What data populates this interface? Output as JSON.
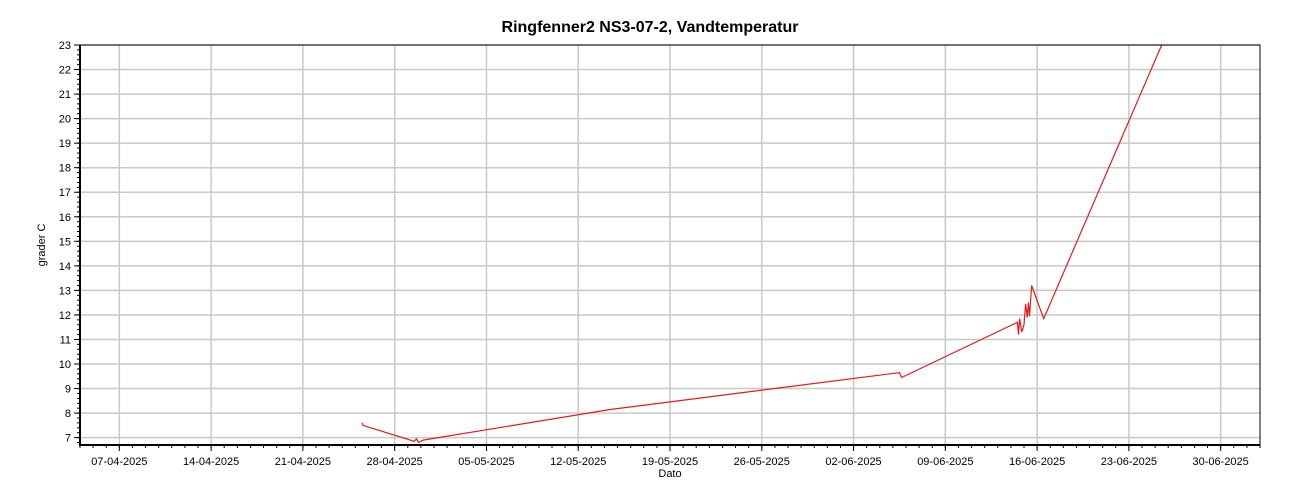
{
  "chart_data": {
    "type": "line",
    "title": "Ringfenner2 NS3-07-2, Vandtemperatur",
    "xlabel": "Dato",
    "ylabel": "grader C",
    "x_type": "date",
    "xlim": [
      "2025-04-04",
      "2025-07-03"
    ],
    "ylim": [
      6.7,
      23
    ],
    "x_ticks": [
      "07-04-2025",
      "14-04-2025",
      "21-04-2025",
      "28-04-2025",
      "05-05-2025",
      "12-05-2025",
      "19-05-2025",
      "26-05-2025",
      "02-06-2025",
      "09-06-2025",
      "16-06-2025",
      "23-06-2025",
      "30-06-2025"
    ],
    "y_ticks": [
      7,
      8,
      9,
      10,
      11,
      12,
      13,
      14,
      15,
      16,
      17,
      18,
      19,
      20,
      21,
      22,
      23
    ],
    "grid": true,
    "legend": false,
    "color": "#e41a1c",
    "series": [
      {
        "x": [
          "2025-04-25 12:00",
          "2025-04-25 14:00",
          "2025-04-29 12:00",
          "2025-04-29 16:00",
          "2025-04-29 20:00",
          "2025-04-30 04:00",
          "2025-05-14 12:00",
          "2025-06-05 12:00",
          "2025-06-05 16:00",
          "2025-06-14 12:00",
          "2025-06-14 14:00",
          "2025-06-14 16:00",
          "2025-06-14 20:00",
          "2025-06-15 00:00",
          "2025-06-15 03:00",
          "2025-06-15 06:00",
          "2025-06-15 08:00",
          "2025-06-15 10:00",
          "2025-06-15 14:00",
          "2025-06-16 12:00",
          "2025-06-25 12:00"
        ],
        "y": [
          7.6,
          7.5,
          6.85,
          6.95,
          6.8,
          6.9,
          8.15,
          9.65,
          9.45,
          11.7,
          11.2,
          11.85,
          11.3,
          11.6,
          12.45,
          11.9,
          12.5,
          11.95,
          13.2,
          11.85,
          23.0
        ]
      }
    ]
  }
}
